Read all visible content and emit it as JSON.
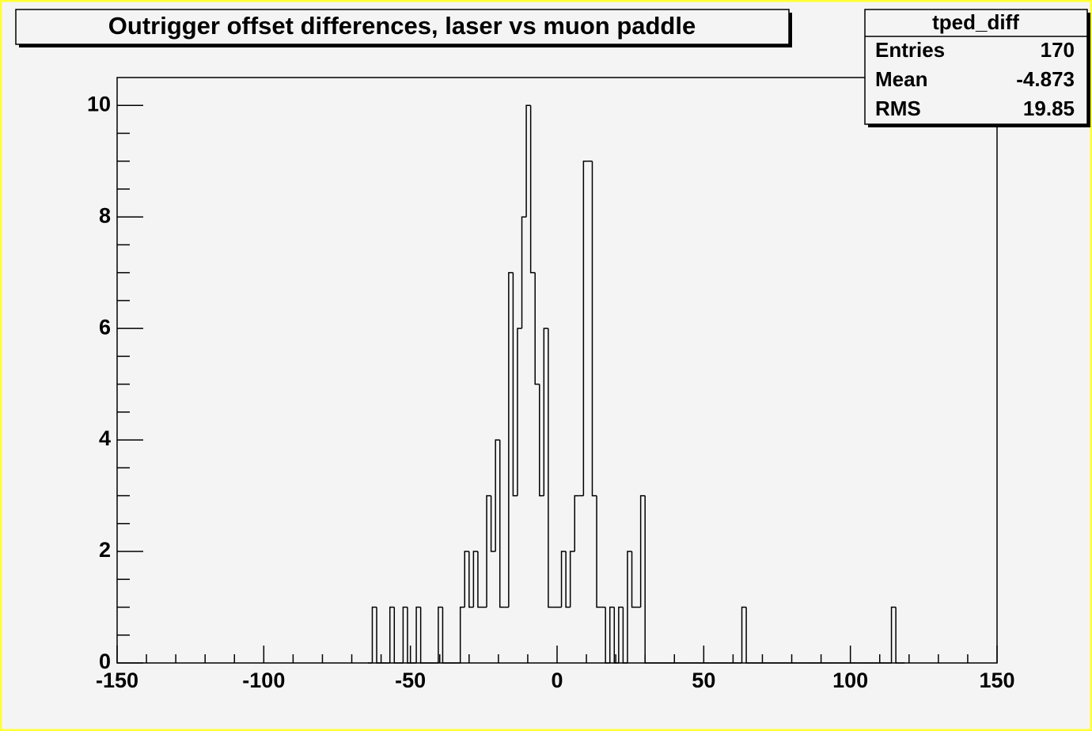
{
  "chart_data": {
    "type": "histogram",
    "title": "Outrigger offset differences, laser vs muon paddle",
    "bins": [
      -64.5,
      -63,
      -61.5,
      -60,
      -58.5,
      -57,
      -55.5,
      -54,
      -52.5,
      -51,
      -49.5,
      -48,
      -46.5,
      -45,
      -43.5,
      -42,
      -40.5,
      -39,
      -37.5,
      -36,
      -34.5,
      -33,
      -31.5,
      -30,
      -28.5,
      -27,
      -25.5,
      -24,
      -22.5,
      -21,
      -19.5,
      -18,
      -16.5,
      -15,
      -13.5,
      -12,
      -10.5,
      -9,
      -7.5,
      -6,
      -4.5,
      -3,
      -1.5,
      0,
      1.5,
      3,
      4.5,
      6,
      7.5,
      9,
      10.5,
      12,
      13.5,
      15,
      16.5,
      18,
      19.5,
      21,
      22.5,
      24,
      25.5,
      27,
      28.5,
      30,
      31.5,
      33,
      34.5,
      36,
      37.5,
      39,
      40.5,
      42,
      43.5,
      45,
      46.5,
      48,
      49.5,
      51,
      52.5,
      54,
      55.5,
      57,
      58.5,
      60,
      61.5,
      63,
      64.5,
      66,
      67.5,
      69,
      70.5,
      72,
      73.5,
      75,
      76.5,
      78,
      79.5,
      81,
      82.5,
      84,
      85.5,
      87,
      88.5,
      90,
      91.5,
      93,
      94.5,
      96,
      97.5,
      99,
      100.5,
      102,
      103.5,
      105,
      106.5,
      108,
      109.5,
      111,
      112.5,
      114,
      115.5,
      117,
      118.5
    ],
    "values": [
      0,
      1,
      0,
      0,
      0,
      1,
      0,
      0,
      1,
      0,
      0,
      1,
      0,
      0,
      0,
      0,
      1,
      0,
      0,
      0,
      0,
      1,
      2,
      1,
      2,
      1,
      1,
      3,
      2,
      4,
      1,
      1,
      7,
      3,
      6,
      8,
      10,
      7,
      5,
      3,
      6,
      1,
      1,
      1,
      2,
      1,
      2,
      3,
      3,
      9,
      9,
      3,
      1,
      1,
      0,
      1,
      0,
      1,
      0,
      2,
      1,
      1,
      3,
      0,
      0,
      0,
      0,
      0,
      0,
      0,
      0,
      0,
      0,
      0,
      0,
      0,
      0,
      0,
      0,
      0,
      0,
      0,
      0,
      0,
      0,
      1,
      0,
      0,
      0,
      0,
      0,
      0,
      0,
      0,
      0,
      0,
      0,
      0,
      0,
      0,
      0,
      0,
      0,
      0,
      0,
      0,
      0,
      0,
      0,
      0,
      0,
      0,
      0,
      0,
      0,
      0,
      0,
      0,
      0,
      1,
      0,
      0
    ],
    "color": "#000000",
    "xlim": [
      -150,
      150
    ],
    "xticks": [
      -150,
      -100,
      -50,
      0,
      50,
      100,
      150
    ],
    "xminorticks": [
      -140,
      -130,
      -120,
      -110,
      -90,
      -80,
      -70,
      -60,
      -40,
      -30,
      -20,
      -10,
      10,
      20,
      30,
      40,
      60,
      70,
      80,
      90,
      110,
      120,
      130,
      140
    ],
    "ylim": [
      0,
      10.5
    ],
    "yticks": [
      0,
      2,
      4,
      6,
      8,
      10
    ],
    "yminorticks": [
      0.5,
      1,
      1.5,
      2.5,
      3,
      3.5,
      4.5,
      5,
      5.5,
      6.5,
      7,
      7.5,
      8.5,
      9,
      9.5
    ],
    "stats": {
      "title": "tped_diff",
      "rows": [
        {
          "label": "Entries",
          "value": 170
        },
        {
          "label": "Mean",
          "value": -4.873
        },
        {
          "label": "RMS",
          "value": 19.85
        }
      ]
    }
  }
}
